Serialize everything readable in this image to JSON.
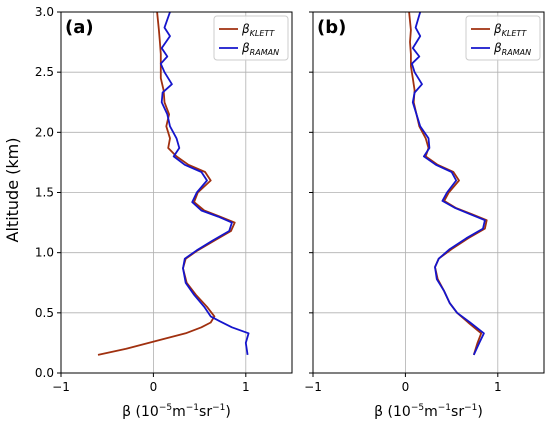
{
  "figure": {
    "shared_ylabel": "Altitude (km)"
  },
  "chart_data": [
    {
      "panel_label": "(a)",
      "type": "line",
      "xlabel_parts": [
        "β (10",
        "−5",
        "m",
        "−1",
        "sr",
        "−1",
        ")"
      ],
      "xlim": [
        -1,
        1.5
      ],
      "ylim": [
        0,
        3.0
      ],
      "xticks": [
        -1,
        0,
        1
      ],
      "xtick_labels": [
        "−1",
        "0",
        "1"
      ],
      "yticks": [
        0,
        0.5,
        1.0,
        1.5,
        2.0,
        2.5,
        3.0
      ],
      "ytick_labels": [
        "0.0",
        "0.5",
        "1.0",
        "1.5",
        "2.0",
        "2.5",
        "3.0"
      ],
      "grid": true,
      "legend_position": "top-right",
      "series": [
        {
          "name": "β",
          "name_sub": "KLETT",
          "color": "#a0300f",
          "points": [
            [
              -0.6,
              0.15
            ],
            [
              -0.3,
              0.2
            ],
            [
              0.1,
              0.28
            ],
            [
              0.35,
              0.33
            ],
            [
              0.52,
              0.38
            ],
            [
              0.62,
              0.42
            ],
            [
              0.66,
              0.47
            ],
            [
              0.58,
              0.55
            ],
            [
              0.46,
              0.65
            ],
            [
              0.36,
              0.75
            ],
            [
              0.32,
              0.87
            ],
            [
              0.35,
              0.95
            ],
            [
              0.48,
              1.02
            ],
            [
              0.66,
              1.1
            ],
            [
              0.84,
              1.18
            ],
            [
              0.88,
              1.25
            ],
            [
              0.72,
              1.3
            ],
            [
              0.55,
              1.35
            ],
            [
              0.44,
              1.42
            ],
            [
              0.48,
              1.5
            ],
            [
              0.62,
              1.6
            ],
            [
              0.56,
              1.67
            ],
            [
              0.38,
              1.73
            ],
            [
              0.25,
              1.8
            ],
            [
              0.16,
              1.87
            ],
            [
              0.18,
              1.95
            ],
            [
              0.14,
              2.05
            ],
            [
              0.17,
              2.15
            ],
            [
              0.12,
              2.25
            ],
            [
              0.11,
              2.35
            ],
            [
              0.08,
              2.45
            ],
            [
              0.08,
              2.55
            ],
            [
              0.08,
              2.65
            ],
            [
              0.07,
              2.75
            ],
            [
              0.06,
              2.85
            ],
            [
              0.04,
              3.0
            ]
          ]
        },
        {
          "name": "β",
          "name_sub": "RAMAN",
          "color": "#1515cc",
          "points": [
            [
              1.02,
              0.15
            ],
            [
              1.0,
              0.25
            ],
            [
              1.03,
              0.33
            ],
            [
              0.85,
              0.38
            ],
            [
              0.72,
              0.43
            ],
            [
              0.62,
              0.47
            ],
            [
              0.55,
              0.55
            ],
            [
              0.44,
              0.65
            ],
            [
              0.35,
              0.75
            ],
            [
              0.32,
              0.87
            ],
            [
              0.34,
              0.95
            ],
            [
              0.47,
              1.02
            ],
            [
              0.64,
              1.1
            ],
            [
              0.82,
              1.18
            ],
            [
              0.85,
              1.25
            ],
            [
              0.7,
              1.3
            ],
            [
              0.52,
              1.35
            ],
            [
              0.42,
              1.42
            ],
            [
              0.47,
              1.5
            ],
            [
              0.58,
              1.6
            ],
            [
              0.52,
              1.67
            ],
            [
              0.34,
              1.73
            ],
            [
              0.22,
              1.8
            ],
            [
              0.28,
              1.87
            ],
            [
              0.25,
              1.95
            ],
            [
              0.18,
              2.05
            ],
            [
              0.15,
              2.15
            ],
            [
              0.09,
              2.25
            ],
            [
              0.1,
              2.33
            ],
            [
              0.2,
              2.4
            ],
            [
              0.12,
              2.5
            ],
            [
              0.08,
              2.57
            ],
            [
              0.15,
              2.63
            ],
            [
              0.09,
              2.7
            ],
            [
              0.18,
              2.8
            ],
            [
              0.12,
              2.87
            ],
            [
              0.18,
              3.0
            ]
          ]
        }
      ]
    },
    {
      "panel_label": "(b)",
      "type": "line",
      "xlabel_parts": [
        "β (10",
        "−5",
        "m",
        "−1",
        "sr",
        "−1",
        ")"
      ],
      "xlim": [
        -1,
        1.5
      ],
      "ylim": [
        0,
        3.0
      ],
      "xticks": [
        -1,
        0,
        1
      ],
      "xtick_labels": [
        "−1",
        "0",
        "1"
      ],
      "yticks": [
        0,
        0.5,
        1.0,
        1.5,
        2.0,
        2.5,
        3.0
      ],
      "ytick_labels": [],
      "grid": true,
      "legend_position": "top-right",
      "series": [
        {
          "name": "β",
          "name_sub": "KLETT",
          "color": "#a0300f",
          "points": [
            [
              0.74,
              0.15
            ],
            [
              0.78,
              0.25
            ],
            [
              0.82,
              0.33
            ],
            [
              0.68,
              0.42
            ],
            [
              0.56,
              0.5
            ],
            [
              0.48,
              0.58
            ],
            [
              0.42,
              0.68
            ],
            [
              0.35,
              0.78
            ],
            [
              0.32,
              0.88
            ],
            [
              0.36,
              0.95
            ],
            [
              0.5,
              1.03
            ],
            [
              0.68,
              1.12
            ],
            [
              0.86,
              1.2
            ],
            [
              0.88,
              1.27
            ],
            [
              0.72,
              1.32
            ],
            [
              0.55,
              1.37
            ],
            [
              0.42,
              1.43
            ],
            [
              0.47,
              1.5
            ],
            [
              0.58,
              1.6
            ],
            [
              0.52,
              1.67
            ],
            [
              0.35,
              1.73
            ],
            [
              0.22,
              1.8
            ],
            [
              0.25,
              1.87
            ],
            [
              0.22,
              1.95
            ],
            [
              0.15,
              2.05
            ],
            [
              0.12,
              2.15
            ],
            [
              0.09,
              2.25
            ],
            [
              0.1,
              2.35
            ],
            [
              0.08,
              2.45
            ],
            [
              0.06,
              2.55
            ],
            [
              0.06,
              2.65
            ],
            [
              0.05,
              2.75
            ],
            [
              0.06,
              2.85
            ],
            [
              0.04,
              3.0
            ]
          ]
        },
        {
          "name": "β",
          "name_sub": "RAMAN",
          "color": "#1515cc",
          "points": [
            [
              0.74,
              0.15
            ],
            [
              0.8,
              0.25
            ],
            [
              0.85,
              0.33
            ],
            [
              0.7,
              0.42
            ],
            [
              0.56,
              0.5
            ],
            [
              0.48,
              0.58
            ],
            [
              0.42,
              0.68
            ],
            [
              0.34,
              0.78
            ],
            [
              0.32,
              0.88
            ],
            [
              0.36,
              0.95
            ],
            [
              0.48,
              1.03
            ],
            [
              0.66,
              1.12
            ],
            [
              0.84,
              1.2
            ],
            [
              0.86,
              1.27
            ],
            [
              0.7,
              1.32
            ],
            [
              0.54,
              1.37
            ],
            [
              0.4,
              1.43
            ],
            [
              0.45,
              1.5
            ],
            [
              0.55,
              1.6
            ],
            [
              0.5,
              1.67
            ],
            [
              0.33,
              1.73
            ],
            [
              0.2,
              1.8
            ],
            [
              0.26,
              1.87
            ],
            [
              0.25,
              1.95
            ],
            [
              0.16,
              2.05
            ],
            [
              0.12,
              2.15
            ],
            [
              0.08,
              2.25
            ],
            [
              0.1,
              2.33
            ],
            [
              0.18,
              2.4
            ],
            [
              0.1,
              2.5
            ],
            [
              0.07,
              2.57
            ],
            [
              0.15,
              2.63
            ],
            [
              0.08,
              2.7
            ],
            [
              0.16,
              2.8
            ],
            [
              0.11,
              2.87
            ],
            [
              0.16,
              3.0
            ]
          ]
        }
      ]
    }
  ]
}
